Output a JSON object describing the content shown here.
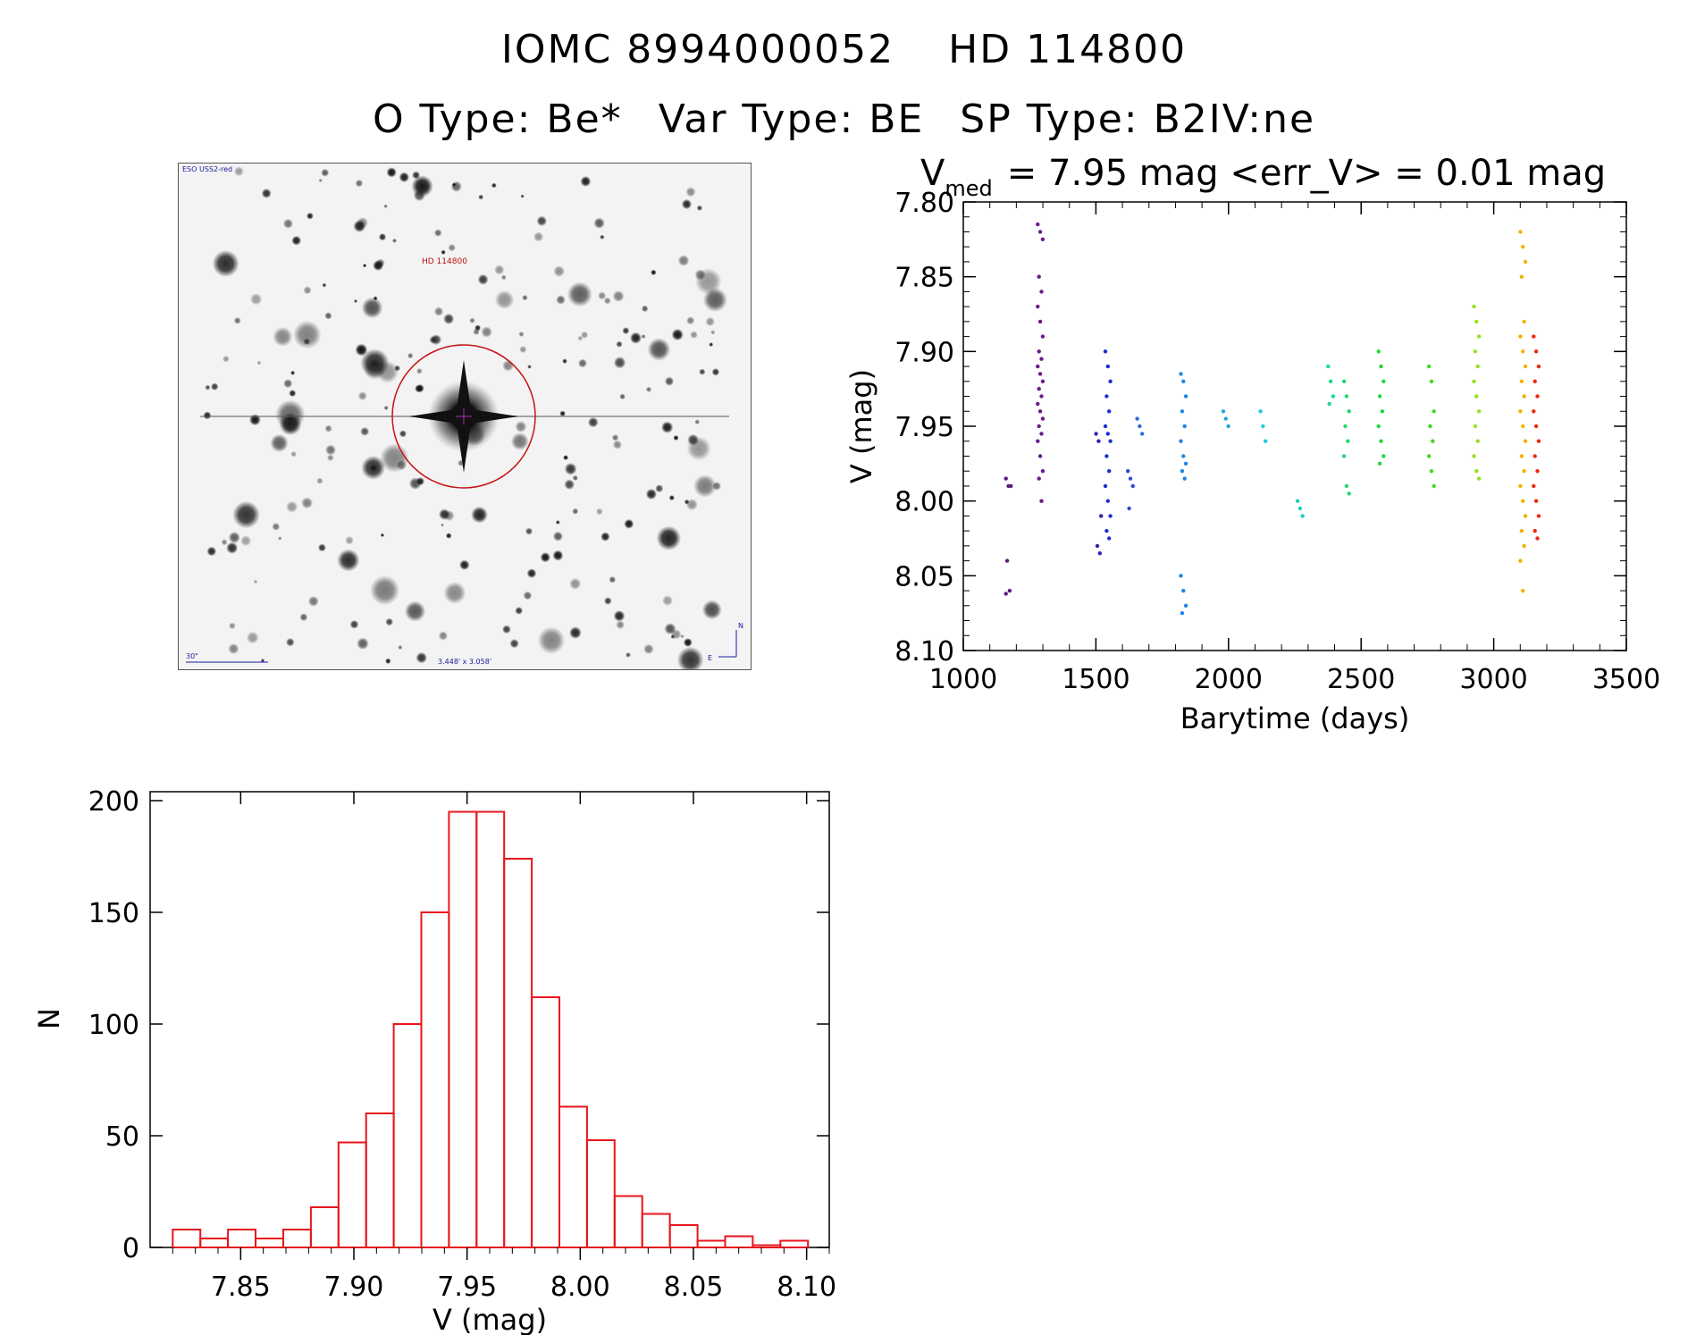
{
  "header": {
    "id_label": "IOMC 8994000052",
    "name_label": "HD 114800",
    "otype": "O Type: Be*",
    "vartype": "Var Type: BE",
    "sptype": "SP Type: B2IV:ne"
  },
  "finder": {
    "survey_label": "ESO USS2-red",
    "target_label": "HD 114800",
    "scale_label": "30\"",
    "fov_label": "3.448' x 3.058'",
    "north_label": "N",
    "east_label": "E"
  },
  "chart_data": [
    {
      "type": "scatter",
      "title_var": "V",
      "title_sub": "med",
      "title_rest": "= 7.95 mag <err_V> = 0.01 mag",
      "xlabel": "Barytime (days)",
      "ylabel": "V (mag)",
      "xlim": [
        1000,
        3500
      ],
      "ylim": [
        8.1,
        7.8
      ],
      "xticks": [
        "1000",
        "1500",
        "2000",
        "2500",
        "3000",
        "3500"
      ],
      "yticks": [
        "7.80",
        "7.85",
        "7.90",
        "7.95",
        "8.00",
        "8.05",
        "8.10"
      ],
      "groups": [
        {
          "x": 1170,
          "y": [
            7.985,
            7.99,
            7.99,
            8.04,
            8.06,
            8.062
          ],
          "color": "#5a1c80"
        },
        {
          "x": 1290,
          "y": [
            7.815,
            7.82,
            7.825,
            7.85,
            7.86,
            7.87,
            7.88,
            7.89,
            7.9,
            7.905,
            7.91,
            7.915,
            7.92,
            7.925,
            7.93,
            7.935,
            7.94,
            7.945,
            7.95,
            7.955,
            7.96,
            7.97,
            7.98,
            7.985,
            8.0
          ],
          "color": "#6a1b8a"
        },
        {
          "x": 1510,
          "y": [
            7.955,
            7.96,
            8.01,
            8.03,
            8.035
          ],
          "color": "#3c1cb0"
        },
        {
          "x": 1545,
          "y": [
            7.9,
            7.91,
            7.92,
            7.93,
            7.94,
            7.95,
            7.955,
            7.96,
            7.97,
            7.98,
            7.99,
            8.0,
            8.01,
            8.02,
            8.025
          ],
          "color": "#1e2fd0"
        },
        {
          "x": 1630,
          "y": [
            7.98,
            7.985,
            7.99,
            8.005
          ],
          "color": "#2a4fd0"
        },
        {
          "x": 1665,
          "y": [
            7.945,
            7.95,
            7.955
          ],
          "color": "#2c6cd8"
        },
        {
          "x": 1830,
          "y": [
            7.915,
            7.92,
            7.93,
            7.94,
            7.95,
            7.96,
            7.97,
            7.975,
            7.98,
            7.985,
            8.05,
            8.06,
            8.07,
            8.075
          ],
          "color": "#1f86e0"
        },
        {
          "x": 1990,
          "y": [
            7.94,
            7.945,
            7.95
          ],
          "color": "#1ea8e0"
        },
        {
          "x": 2130,
          "y": [
            7.94,
            7.95,
            7.96
          ],
          "color": "#22c8e0"
        },
        {
          "x": 2270,
          "y": [
            8.0,
            8.005,
            8.01
          ],
          "color": "#20d0b8"
        },
        {
          "x": 2385,
          "y": [
            7.91,
            7.92,
            7.93,
            7.935
          ],
          "color": "#20d890"
        },
        {
          "x": 2445,
          "y": [
            7.92,
            7.93,
            7.94,
            7.95,
            7.96,
            7.97,
            7.99,
            7.995
          ],
          "color": "#22d870"
        },
        {
          "x": 2575,
          "y": [
            7.9,
            7.91,
            7.92,
            7.93,
            7.94,
            7.95,
            7.96,
            7.97,
            7.975
          ],
          "color": "#20d840"
        },
        {
          "x": 2765,
          "y": [
            7.91,
            7.92,
            7.94,
            7.95,
            7.96,
            7.97,
            7.98,
            7.99
          ],
          "color": "#40d820"
        },
        {
          "x": 2935,
          "y": [
            7.87,
            7.88,
            7.89,
            7.9,
            7.91,
            7.92,
            7.93,
            7.94,
            7.95,
            7.96,
            7.97,
            7.98,
            7.985
          ],
          "color": "#98e020"
        },
        {
          "x": 3110,
          "y": [
            7.82,
            7.83,
            7.84,
            7.85,
            7.88,
            7.89,
            7.9,
            7.91,
            7.92,
            7.93,
            7.94,
            7.95,
            7.96,
            7.97,
            7.98,
            7.99,
            8.0,
            8.01,
            8.02,
            8.03,
            8.04,
            8.06
          ],
          "color": "#f0b400"
        },
        {
          "x": 3160,
          "y": [
            7.89,
            7.9,
            7.91,
            7.92,
            7.93,
            7.94,
            7.95,
            7.96,
            7.97,
            7.98,
            7.99,
            8.0,
            8.01,
            8.02,
            8.025
          ],
          "color": "#f02810"
        }
      ]
    },
    {
      "type": "bar",
      "xlabel": "V (mag)",
      "ylabel": "N",
      "xlim": [
        7.81,
        8.11
      ],
      "ylim": [
        0,
        200
      ],
      "xticks": [
        "7.85",
        "7.90",
        "7.95",
        "8.00",
        "8.05",
        "8.10"
      ],
      "yticks": [
        "0",
        "50",
        "100",
        "150",
        "200"
      ],
      "bin_start": 7.82,
      "bin_width": 0.0122,
      "values": [
        8,
        4,
        8,
        4,
        8,
        18,
        47,
        60,
        100,
        150,
        195,
        195,
        174,
        112,
        63,
        48,
        23,
        15,
        10,
        3,
        5,
        1,
        3
      ],
      "color": "#e8161c"
    }
  ]
}
